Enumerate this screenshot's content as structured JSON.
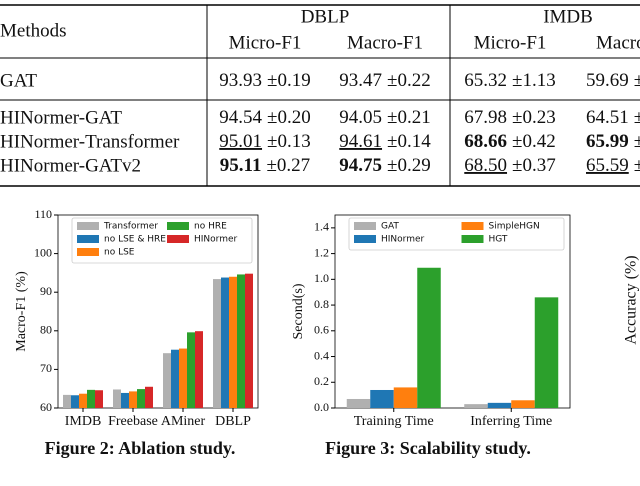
{
  "table": {
    "header": {
      "methods": "Methods",
      "groups": [
        {
          "name": "DBLP",
          "columns": [
            "Micro-F1",
            "Macro-F1"
          ]
        },
        {
          "name": "IMDB",
          "columns": [
            "Micro-F1",
            "Macro"
          ]
        }
      ]
    },
    "sections": [
      [
        {
          "method": "GAT",
          "cells": [
            {
              "mean": "93.93",
              "std": "±0.19"
            },
            {
              "mean": "93.47",
              "std": "±0.22"
            },
            {
              "mean": "65.32",
              "std": "±1.13"
            },
            {
              "mean": "59.69",
              "std": "±"
            }
          ]
        }
      ],
      [
        {
          "method": "HINormer-GAT",
          "cells": [
            {
              "mean": "94.54",
              "std": "±0.20"
            },
            {
              "mean": "94.05",
              "std": "±0.21"
            },
            {
              "mean": "67.98",
              "std": "±0.23"
            },
            {
              "mean": "64.51",
              "std": "±"
            }
          ]
        },
        {
          "method": "HINormer-Transformer",
          "cells": [
            {
              "mean": "95.01",
              "std": "±0.13",
              "style": "underline"
            },
            {
              "mean": "94.61",
              "std": "±0.14",
              "style": "underline"
            },
            {
              "mean": "68.66",
              "std": "±0.42",
              "style": "bold"
            },
            {
              "mean": "65.99",
              "std": "±",
              "style": "bold"
            }
          ]
        },
        {
          "method": "HINormer-GATv2",
          "cells": [
            {
              "mean": "95.11",
              "std": "±0.27",
              "style": "bold"
            },
            {
              "mean": "94.75",
              "std": "±0.29",
              "style": "bold"
            },
            {
              "mean": "68.50",
              "std": "±0.37",
              "style": "underline"
            },
            {
              "mean": "65.59",
              "std": "±",
              "style": "underline"
            }
          ]
        }
      ]
    ]
  },
  "chart_data": [
    {
      "type": "bar",
      "ylabel": "Macro-F1 (%)",
      "caption": "Figure 2: Ablation study.",
      "categories": [
        "IMDB",
        "Freebase",
        "AMiner",
        "DBLP"
      ],
      "series": [
        {
          "name": "Transformer",
          "color": "#b0b0b0",
          "values": [
            63.4,
            64.8,
            74.2,
            93.4
          ]
        },
        {
          "name": "no LSE & HRE",
          "color": "#1f77b4",
          "values": [
            63.3,
            63.9,
            75.1,
            93.8
          ]
        },
        {
          "name": "no LSE",
          "color": "#ff7f0e",
          "values": [
            63.7,
            64.3,
            75.4,
            94.0
          ]
        },
        {
          "name": "no HRE",
          "color": "#2ca02c",
          "values": [
            64.7,
            64.9,
            79.6,
            94.6
          ]
        },
        {
          "name": "HINormer",
          "color": "#d62728",
          "values": [
            64.6,
            65.5,
            79.9,
            94.8
          ]
        }
      ],
      "ylim": [
        60,
        110
      ],
      "yticks": [
        60,
        70,
        80,
        90,
        100,
        110
      ]
    },
    {
      "type": "bar",
      "ylabel": "Second(s)",
      "caption": "Figure 3: Scalability study.",
      "categories": [
        "Training Time",
        "Inferring Time"
      ],
      "series": [
        {
          "name": "GAT",
          "color": "#b0b0b0",
          "values": [
            0.07,
            0.03
          ]
        },
        {
          "name": "HINormer",
          "color": "#1f77b4",
          "values": [
            0.14,
            0.04
          ]
        },
        {
          "name": "SimpleHGN",
          "color": "#ff7f0e",
          "values": [
            0.16,
            0.06
          ]
        },
        {
          "name": "HGT",
          "color": "#2ca02c",
          "values": [
            1.09,
            0.86
          ]
        }
      ],
      "ylim": [
        0,
        1.5
      ],
      "yticks": [
        {
          "value": 0,
          "label": "0.0"
        },
        0.2,
        0.4,
        0.6,
        0.8,
        {
          "value": 1,
          "label": "1.0"
        },
        1.2,
        1.4
      ]
    }
  ],
  "partial_chart": {
    "ylabel": "Accuracy (%)"
  }
}
